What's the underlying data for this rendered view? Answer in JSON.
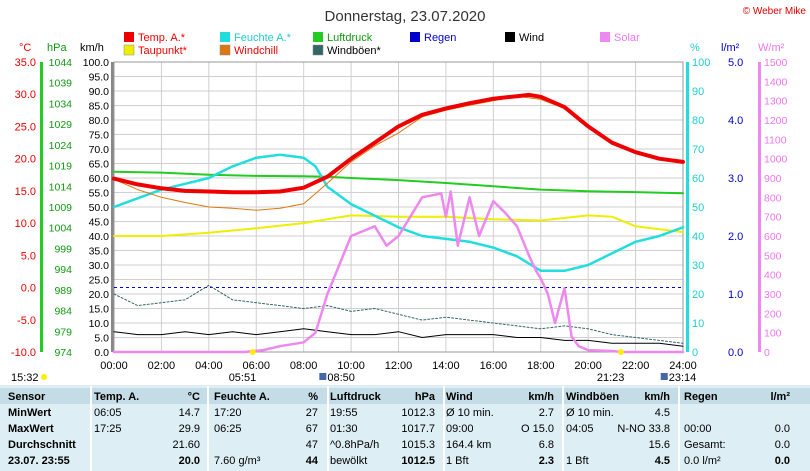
{
  "title": "Donnerstag, 23.07.2020",
  "copyright": "© Weber Mike",
  "colors": {
    "temp": "#ee0000",
    "feuchte": "#22dddd",
    "luftdruck": "#22cc22",
    "regen": "#0000cc",
    "wind": "#000000",
    "solar": "#ee88ee",
    "taupunkt": "#eeee00",
    "windchill": "#dd7711",
    "windboeen": "#336666"
  },
  "legend": {
    "row1": [
      {
        "label": "Temp. A.*",
        "color": "#ee0000",
        "text_color": "#ee0000"
      },
      {
        "label": "Feuchte A.*",
        "color": "#22dddd",
        "text_color": "#22cccc"
      },
      {
        "label": "Luftdruck",
        "color": "#22cc22",
        "text_color": "#119911"
      },
      {
        "label": "Regen",
        "color": "#0000cc",
        "text_color": "#0000cc"
      },
      {
        "label": "Wind",
        "color": "#000000",
        "text_color": "#000000"
      },
      {
        "label": "Solar",
        "color": "#ee88ee",
        "text_color": "#ee77ee"
      }
    ],
    "row2": [
      {
        "label": "Taupunkt*",
        "color": "#eeee00",
        "text_color": "#ee0000"
      },
      {
        "label": "Windchill",
        "color": "#dd7711",
        "text_color": "#ee0000"
      },
      {
        "label": "Windböen*",
        "color": "#336666",
        "text_color": "#000000"
      }
    ]
  },
  "axis_units": {
    "celsius": "°C",
    "hpa": "hPa",
    "kmh": "km/h",
    "percent": "%",
    "lm2": "l/m²",
    "wm2": "W/m²"
  },
  "axes": {
    "celsius": [
      "35.0",
      "30.0",
      "25.0",
      "20.0",
      "15.0",
      "10.0",
      "5.0",
      "0.0",
      "-5.0",
      "-10.0"
    ],
    "hpa": [
      "1044",
      "1039",
      "1034",
      "1029",
      "1024",
      "1019",
      "1014",
      "1009",
      "1004",
      "999",
      "994",
      "989",
      "984",
      "979",
      "974"
    ],
    "kmh": [
      "100.0",
      "95.0",
      "90.0",
      "85.0",
      "80.0",
      "75.0",
      "70.0",
      "65.0",
      "60.0",
      "55.0",
      "50.0",
      "45.0",
      "40.0",
      "35.0",
      "30.0",
      "25.0",
      "20.0",
      "15.0",
      "10.0",
      "5.0",
      "0.0"
    ],
    "percent": [
      "100",
      "90",
      "80",
      "70",
      "60",
      "50",
      "40",
      "30",
      "20",
      "10",
      "0"
    ],
    "lm2": [
      "5.0",
      "4.0",
      "3.0",
      "2.0",
      "1.0",
      "0.0"
    ],
    "wm2": [
      "1500",
      "1400",
      "1300",
      "1200",
      "1100",
      "1000",
      "900",
      "800",
      "700",
      "600",
      "500",
      "400",
      "300",
      "200",
      "100",
      "0"
    ],
    "time": [
      "00:00",
      "02:00",
      "04:00",
      "06:00",
      "08:00",
      "10:00",
      "12:00",
      "14:00",
      "16:00",
      "18:00",
      "20:00",
      "22:00",
      "24:00"
    ]
  },
  "markers": {
    "first_time": "15:32",
    "sunrise": "05:51",
    "moonrise": "08:50",
    "sunset": "21:23",
    "moonset": "23:14"
  },
  "chart_data": {
    "type": "line",
    "title": "Donnerstag, 23.07.2020",
    "x_unit": "hour of day",
    "xlim": [
      0,
      24
    ],
    "ylim_celsius": [
      -10,
      35
    ],
    "ylim_hpa": [
      974,
      1044
    ],
    "ylim_kmh": [
      0,
      100
    ],
    "ylim_percent": [
      0,
      100
    ],
    "ylim_lm2": [
      0,
      5
    ],
    "ylim_wm2": [
      0,
      1500
    ],
    "series": [
      {
        "name": "Temp. A.*",
        "axis": "celsius",
        "color": "#ee0000",
        "points": [
          [
            0,
            16.9
          ],
          [
            1,
            16.0
          ],
          [
            2,
            15.4
          ],
          [
            3,
            15.0
          ],
          [
            4,
            14.9
          ],
          [
            5,
            14.8
          ],
          [
            6,
            14.8
          ],
          [
            7,
            14.9
          ],
          [
            8,
            15.5
          ],
          [
            9,
            17.2
          ],
          [
            10,
            20.0
          ],
          [
            11,
            22.5
          ],
          [
            12,
            25.0
          ],
          [
            13,
            26.8
          ],
          [
            14,
            27.8
          ],
          [
            15,
            28.6
          ],
          [
            16,
            29.3
          ],
          [
            17,
            29.7
          ],
          [
            17.5,
            29.9
          ],
          [
            18,
            29.6
          ],
          [
            19,
            28.0
          ],
          [
            20,
            25.0
          ],
          [
            21,
            22.5
          ],
          [
            22,
            21.0
          ],
          [
            23,
            20.0
          ],
          [
            24,
            19.5
          ]
        ]
      },
      {
        "name": "Windchill",
        "axis": "celsius",
        "color": "#dd7711",
        "points": [
          [
            0,
            16.8
          ],
          [
            1,
            15.2
          ],
          [
            2,
            14.0
          ],
          [
            3,
            13.2
          ],
          [
            4,
            12.5
          ],
          [
            5,
            12.3
          ],
          [
            6,
            12.0
          ],
          [
            7,
            12.3
          ],
          [
            8,
            13.0
          ],
          [
            9,
            16.2
          ],
          [
            10,
            19.5
          ],
          [
            11,
            22.0
          ],
          [
            12,
            24.0
          ],
          [
            13,
            26.5
          ],
          [
            14,
            27.5
          ],
          [
            15,
            28.3
          ],
          [
            16,
            29.0
          ],
          [
            17,
            29.7
          ],
          [
            18,
            29.2
          ],
          [
            19,
            27.8
          ],
          [
            20,
            24.8
          ],
          [
            21,
            22.4
          ],
          [
            22,
            21.0
          ],
          [
            23,
            20.0
          ],
          [
            24,
            19.4
          ]
        ]
      },
      {
        "name": "Taupunkt*",
        "axis": "celsius",
        "color": "#eeee00",
        "points": [
          [
            0,
            8.0
          ],
          [
            2,
            8.0
          ],
          [
            4,
            8.5
          ],
          [
            6,
            9.2
          ],
          [
            8,
            10.0
          ],
          [
            9,
            10.6
          ],
          [
            10,
            11.2
          ],
          [
            12,
            11.0
          ],
          [
            14,
            11.0
          ],
          [
            16,
            10.6
          ],
          [
            18,
            10.4
          ],
          [
            20,
            11.2
          ],
          [
            21,
            11.0
          ],
          [
            22,
            9.5
          ],
          [
            24,
            8.6
          ]
        ]
      },
      {
        "name": "Feuchte A.*",
        "axis": "percent",
        "color": "#22dddd",
        "points": [
          [
            0,
            50
          ],
          [
            1,
            53
          ],
          [
            2,
            56
          ],
          [
            3,
            58
          ],
          [
            4,
            60
          ],
          [
            5,
            64
          ],
          [
            6,
            67
          ],
          [
            7,
            68
          ],
          [
            8,
            67
          ],
          [
            8.5,
            64
          ],
          [
            9,
            57
          ],
          [
            10,
            51
          ],
          [
            11,
            47
          ],
          [
            12,
            43
          ],
          [
            13,
            40
          ],
          [
            14,
            39
          ],
          [
            15,
            38
          ],
          [
            16,
            36
          ],
          [
            17,
            33
          ],
          [
            18,
            28
          ],
          [
            19,
            28
          ],
          [
            20,
            30
          ],
          [
            21,
            34
          ],
          [
            22,
            38
          ],
          [
            23,
            40
          ],
          [
            24,
            43
          ]
        ]
      },
      {
        "name": "Luftdruck",
        "axis": "hpa",
        "color": "#22cc22",
        "points": [
          [
            0,
            1017.5
          ],
          [
            2,
            1017.3
          ],
          [
            4,
            1016.8
          ],
          [
            6,
            1016.5
          ],
          [
            8,
            1016.4
          ],
          [
            9,
            1016.3
          ],
          [
            10,
            1016.0
          ],
          [
            12,
            1015.5
          ],
          [
            14,
            1014.8
          ],
          [
            16,
            1014.0
          ],
          [
            18,
            1013.2
          ],
          [
            20,
            1012.8
          ],
          [
            22,
            1012.6
          ],
          [
            24,
            1012.3
          ]
        ]
      },
      {
        "name": "Solar",
        "axis": "wm2",
        "color": "#ee88ee",
        "points": [
          [
            0,
            0
          ],
          [
            5.5,
            0
          ],
          [
            6.3,
            10
          ],
          [
            7,
            30
          ],
          [
            8,
            50
          ],
          [
            8.5,
            100
          ],
          [
            9,
            300
          ],
          [
            10,
            600
          ],
          [
            11,
            650
          ],
          [
            11.5,
            550
          ],
          [
            12,
            600
          ],
          [
            13,
            800
          ],
          [
            13.8,
            820
          ],
          [
            14,
            700
          ],
          [
            14.2,
            830
          ],
          [
            14.5,
            550
          ],
          [
            15,
            800
          ],
          [
            15.4,
            600
          ],
          [
            16,
            780
          ],
          [
            16.5,
            720
          ],
          [
            17,
            650
          ],
          [
            17.5,
            500
          ],
          [
            17.8,
            420
          ],
          [
            18,
            380
          ],
          [
            18.3,
            300
          ],
          [
            18.6,
            150
          ],
          [
            19,
            330
          ],
          [
            19.3,
            80
          ],
          [
            19.6,
            30
          ],
          [
            20,
            10
          ],
          [
            21,
            5
          ],
          [
            21.4,
            0
          ],
          [
            24,
            0
          ]
        ]
      },
      {
        "name": "Wind",
        "axis": "kmh",
        "color": "#000000",
        "points": [
          [
            0,
            7
          ],
          [
            1,
            6
          ],
          [
            2,
            6
          ],
          [
            3,
            7
          ],
          [
            4,
            6
          ],
          [
            5,
            7
          ],
          [
            6,
            6
          ],
          [
            7,
            7
          ],
          [
            8,
            8
          ],
          [
            9,
            7
          ],
          [
            10,
            6
          ],
          [
            11,
            6
          ],
          [
            12,
            7
          ],
          [
            13,
            5
          ],
          [
            14,
            6
          ],
          [
            15,
            6
          ],
          [
            16,
            6
          ],
          [
            17,
            5
          ],
          [
            18,
            5
          ],
          [
            19,
            4
          ],
          [
            20,
            4
          ],
          [
            21,
            3
          ],
          [
            22,
            3
          ],
          [
            23,
            3
          ],
          [
            24,
            2
          ]
        ]
      },
      {
        "name": "Windböen*",
        "axis": "kmh",
        "color": "#336666",
        "points": [
          [
            0,
            20
          ],
          [
            1,
            16
          ],
          [
            2,
            17
          ],
          [
            3,
            18
          ],
          [
            4,
            23
          ],
          [
            5,
            18
          ],
          [
            6,
            17
          ],
          [
            7,
            16
          ],
          [
            8,
            15
          ],
          [
            9,
            16
          ],
          [
            10,
            14
          ],
          [
            11,
            15
          ],
          [
            12,
            13
          ],
          [
            13,
            11
          ],
          [
            14,
            12
          ],
          [
            15,
            11
          ],
          [
            16,
            10
          ],
          [
            17,
            9
          ],
          [
            18,
            8
          ],
          [
            19,
            9
          ],
          [
            20,
            8
          ],
          [
            21,
            6
          ],
          [
            22,
            5
          ],
          [
            23,
            4
          ],
          [
            24,
            3
          ]
        ]
      }
    ],
    "reference_line": {
      "axis": "celsius",
      "value": 0,
      "color": "#0000cc",
      "dashed": true
    }
  },
  "table": {
    "headers": {
      "sensor": "Sensor",
      "temp": "Temp. A.",
      "temp_unit": "°C",
      "feuchte": "Feuchte A.",
      "feuchte_unit": "%",
      "druck": "Luftdruck",
      "druck_unit": "hPa",
      "wind": "Wind",
      "wind_unit": "km/h",
      "boeen": "Windböen",
      "boeen_unit": "km/h",
      "regen": "Regen",
      "regen_unit": "l/m²"
    },
    "rows": [
      {
        "label": "MinWert",
        "t_time": "06:05",
        "t_val": "14.7",
        "f_time": "17:20",
        "f_val": "27",
        "d_time": "19:55",
        "d_val": "1012.3",
        "w_label": "Ø 10 min.",
        "w_val": "2.7",
        "b_label": "Ø 10 min.",
        "b_val": "4.5",
        "r_label": "",
        "r_val": ""
      },
      {
        "label": "MaxWert",
        "t_time": "17:25",
        "t_val": "29.9",
        "f_time": "06:25",
        "f_val": "67",
        "d_time": "01:30",
        "d_val": "1017.7",
        "w_label": "09:00",
        "w_val": "O 15.0",
        "b_label": "04:05",
        "b_val": "N-NO 33.8",
        "r_label": "00:00",
        "r_val": "0.0"
      },
      {
        "label": "Durchschnitt",
        "t_time": "",
        "t_val": "21.60",
        "f_time": "",
        "f_val": "47",
        "d_time": "^0.8hPa/h",
        "d_val": "1015.3",
        "w_label": "164.4 km",
        "w_val": "6.8",
        "b_label": "",
        "b_val": "15.6",
        "r_label": "Gesamt:",
        "r_val": "0.0"
      },
      {
        "label": "23.07. 23:55",
        "t_time": "",
        "t_val": "20.0",
        "f_time": "7.60 g/m³",
        "f_val": "44",
        "d_time": "bewölkt",
        "d_val": "1012.5",
        "w_label": "1 Bft",
        "w_val": "2.3",
        "b_label": "1 Bft",
        "b_val": "4.5",
        "r_label": "0.0 l/m²",
        "r_val": "0.0"
      }
    ]
  }
}
